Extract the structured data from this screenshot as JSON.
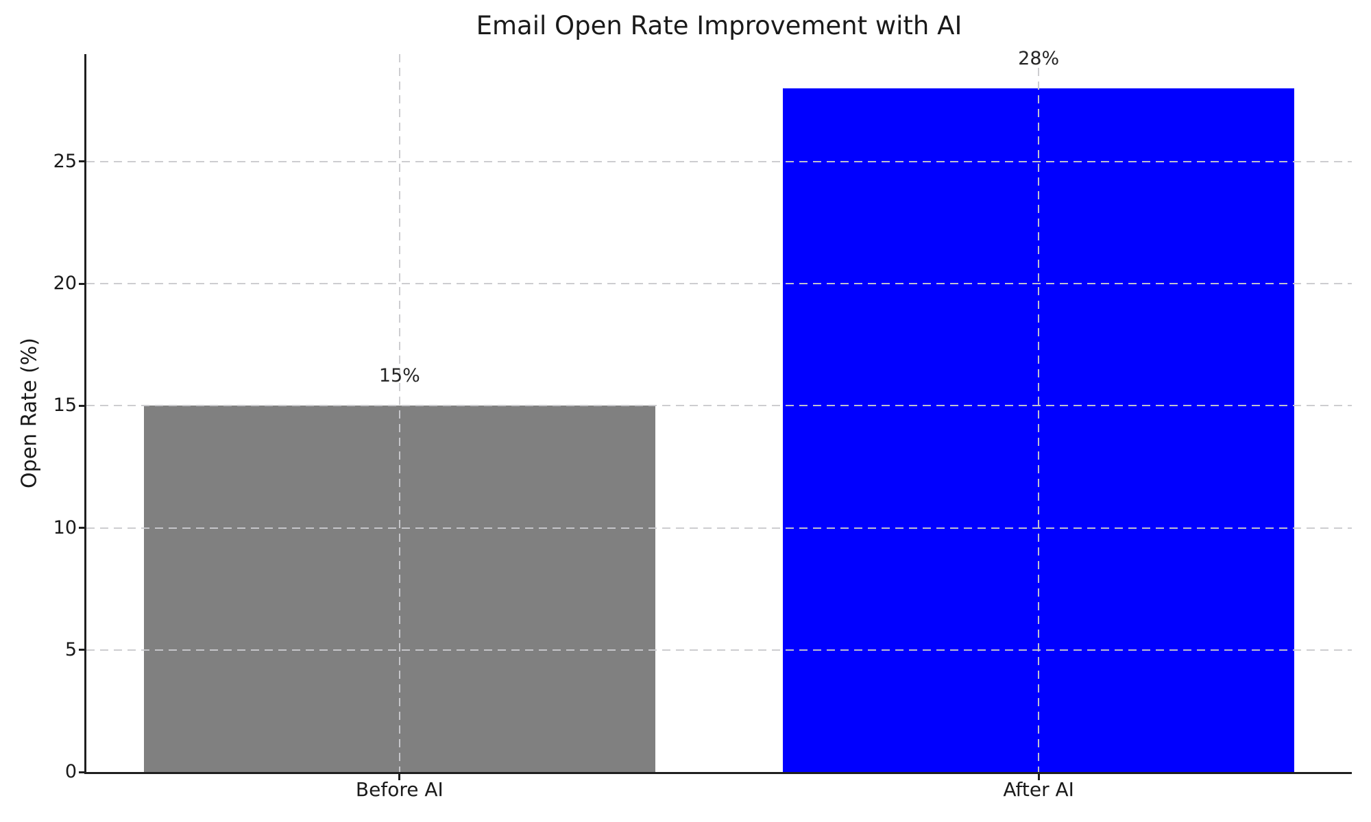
{
  "chart_data": {
    "type": "bar",
    "title": "Email Open Rate Improvement with AI",
    "xlabel": "",
    "ylabel": "Open Rate (%)",
    "categories": [
      "Before AI",
      "After AI"
    ],
    "values": [
      15,
      28
    ],
    "bar_labels": [
      "15%",
      "28%"
    ],
    "bar_colors": [
      "#808080",
      "#0000ff"
    ],
    "ylim": [
      0,
      29.4
    ],
    "yticks": [
      0,
      5,
      10,
      15,
      20,
      25
    ],
    "ytick_labels": [
      "0",
      "5",
      "10",
      "15",
      "20",
      "25"
    ],
    "grid": "dashed horizontal and vertical gridlines, drawn above bars",
    "legend_position": "none"
  },
  "colors": {
    "bar_before": "#808080",
    "bar_after": "#0000ff",
    "grid": "#cacace",
    "spine": "#1f1f1f",
    "text": "#1a1a1a",
    "background": "#ffffff"
  }
}
